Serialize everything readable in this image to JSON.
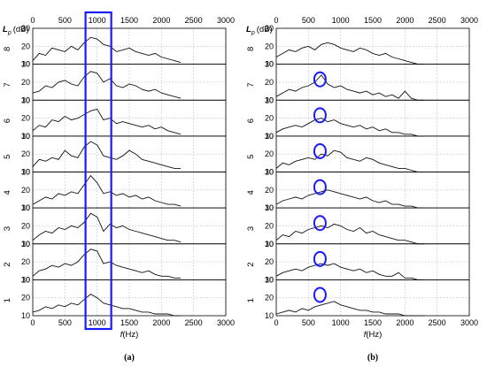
{
  "chart_data": [
    {
      "type": "line",
      "panel_label": "(a)",
      "xlabel_italic": "f",
      "xlabel_unit": "(Hz)",
      "ylabel_italic": "L",
      "ylabel_sub": "p",
      "ylabel_unit": "(dB)",
      "xlim": [
        0,
        3000
      ],
      "ylim": [
        10,
        30
      ],
      "x_ticks": [
        "0",
        "500",
        "1000",
        "1500",
        "2000",
        "2500",
        "3000"
      ],
      "y_ticks": [
        "10",
        "20",
        "30"
      ],
      "grid": true,
      "highlight": {
        "shape": "rectangle",
        "x_range": [
          820,
          1220
        ],
        "color": "#1a1aff"
      },
      "series": [
        {
          "name": "8",
          "x": [
            0,
            100,
            200,
            300,
            400,
            500,
            600,
            700,
            800,
            900,
            1000,
            1100,
            1200,
            1300,
            1400,
            1500,
            1600,
            1700,
            1800,
            1900,
            2000,
            2100,
            2200,
            2300
          ],
          "values": [
            12,
            16,
            15,
            19,
            18,
            17,
            20,
            18,
            22,
            25,
            24,
            21,
            20,
            17,
            18,
            19,
            17,
            16,
            15,
            16,
            14,
            13,
            12,
            11
          ]
        },
        {
          "name": "7",
          "x": [
            0,
            100,
            200,
            300,
            400,
            500,
            600,
            700,
            800,
            900,
            1000,
            1100,
            1200,
            1300,
            1400,
            1500,
            1600,
            1700,
            1800,
            1900,
            2000,
            2100,
            2200,
            2300
          ],
          "values": [
            14,
            15,
            18,
            17,
            20,
            21,
            19,
            18,
            23,
            26,
            25,
            20,
            22,
            18,
            17,
            19,
            18,
            16,
            15,
            16,
            14,
            13,
            12,
            11
          ]
        },
        {
          "name": "6",
          "x": [
            0,
            100,
            200,
            300,
            400,
            500,
            600,
            700,
            800,
            900,
            1000,
            1100,
            1200,
            1300,
            1400,
            1500,
            1600,
            1700,
            1800,
            1900,
            2000,
            2100,
            2200,
            2300
          ],
          "values": [
            13,
            16,
            15,
            19,
            18,
            21,
            19,
            20,
            22,
            24,
            25,
            19,
            20,
            17,
            18,
            17,
            16,
            15,
            16,
            14,
            15,
            13,
            12,
            11
          ]
        },
        {
          "name": "5",
          "x": [
            0,
            100,
            200,
            300,
            400,
            500,
            600,
            700,
            800,
            900,
            1000,
            1100,
            1200,
            1300,
            1400,
            1500,
            1600,
            1700,
            1800,
            1900,
            2000,
            2100,
            2200,
            2300
          ],
          "values": [
            13,
            17,
            16,
            18,
            17,
            22,
            19,
            18,
            24,
            27,
            25,
            19,
            18,
            17,
            19,
            22,
            20,
            17,
            16,
            15,
            14,
            13,
            12,
            12
          ]
        },
        {
          "name": "4",
          "x": [
            0,
            100,
            200,
            300,
            400,
            500,
            600,
            700,
            800,
            900,
            1000,
            1100,
            1200,
            1300,
            1400,
            1500,
            1600,
            1700,
            1800,
            1900,
            2000,
            2100,
            2200,
            2300
          ],
          "values": [
            12,
            14,
            16,
            15,
            18,
            17,
            19,
            18,
            23,
            28,
            24,
            18,
            19,
            17,
            18,
            16,
            17,
            15,
            16,
            14,
            13,
            12,
            12,
            11
          ]
        },
        {
          "name": "3",
          "x": [
            0,
            100,
            200,
            300,
            400,
            500,
            600,
            700,
            800,
            900,
            1000,
            1100,
            1200,
            1300,
            1400,
            1500,
            1600,
            1700,
            1800,
            1900,
            2000,
            2100,
            2200,
            2300
          ],
          "values": [
            12,
            15,
            17,
            16,
            19,
            18,
            20,
            19,
            22,
            27,
            25,
            17,
            21,
            19,
            20,
            18,
            17,
            16,
            15,
            14,
            13,
            12,
            12,
            11
          ]
        },
        {
          "name": "2",
          "x": [
            0,
            100,
            200,
            300,
            400,
            500,
            600,
            700,
            800,
            900,
            1000,
            1100,
            1200,
            1300,
            1400,
            1500,
            1600,
            1700,
            1800,
            1900,
            2000,
            2100,
            2200,
            2300
          ],
          "values": [
            12,
            15,
            16,
            18,
            17,
            19,
            18,
            20,
            24,
            27,
            26,
            19,
            20,
            18,
            17,
            16,
            15,
            14,
            15,
            13,
            12,
            12,
            11,
            11
          ]
        },
        {
          "name": "1",
          "x": [
            0,
            100,
            200,
            300,
            400,
            500,
            600,
            700,
            800,
            900,
            1000,
            1100,
            1200,
            1300,
            1400,
            1500,
            1600,
            1700,
            1800,
            1900,
            2000,
            2100,
            2200,
            2300
          ],
          "values": [
            12,
            13,
            15,
            14,
            16,
            15,
            17,
            16,
            19,
            22,
            20,
            17,
            16,
            15,
            14,
            14,
            13,
            12,
            12,
            11,
            11,
            11,
            10,
            10
          ]
        }
      ]
    },
    {
      "type": "line",
      "panel_label": "(b)",
      "xlabel_italic": "f",
      "xlabel_unit": "(Hz)",
      "ylabel_italic": "L",
      "ylabel_sub": "p",
      "ylabel_unit": "(dB)",
      "xlim": [
        0,
        3000
      ],
      "ylim": [
        10,
        30
      ],
      "x_ticks": [
        "0",
        "500",
        "1000",
        "1500",
        "2000",
        "2500",
        "3000"
      ],
      "y_ticks": [
        "10",
        "20",
        "30"
      ],
      "grid": true,
      "highlight": {
        "shape": "circle",
        "x": 680,
        "color": "#1a1aff",
        "panels": [
          "7",
          "6",
          "5",
          "4",
          "3",
          "2",
          "1"
        ]
      },
      "series": [
        {
          "name": "8",
          "x": [
            0,
            100,
            200,
            300,
            400,
            500,
            600,
            700,
            800,
            900,
            1000,
            1100,
            1200,
            1300,
            1400,
            1500,
            1600,
            1700,
            1800,
            1900,
            2000,
            2100,
            2200,
            2300
          ],
          "values": [
            14,
            16,
            18,
            17,
            19,
            20,
            18,
            21,
            22,
            21,
            19,
            18,
            17,
            19,
            18,
            16,
            15,
            16,
            14,
            13,
            12,
            11,
            10,
            10
          ]
        },
        {
          "name": "7",
          "x": [
            0,
            100,
            200,
            300,
            400,
            500,
            600,
            700,
            800,
            900,
            1000,
            1100,
            1200,
            1300,
            1400,
            1500,
            1600,
            1700,
            1800,
            1900,
            2000,
            2100,
            2200,
            2300
          ],
          "values": [
            12,
            14,
            16,
            15,
            17,
            18,
            20,
            24,
            19,
            17,
            18,
            16,
            15,
            14,
            15,
            13,
            14,
            12,
            13,
            11,
            15,
            11,
            10,
            10
          ]
        },
        {
          "name": "6",
          "x": [
            0,
            100,
            200,
            300,
            400,
            500,
            600,
            700,
            800,
            900,
            1000,
            1100,
            1200,
            1300,
            1400,
            1500,
            1600,
            1700,
            1800,
            1900,
            2000,
            2100,
            2200,
            2300
          ],
          "values": [
            12,
            14,
            15,
            16,
            15,
            17,
            19,
            20,
            18,
            19,
            17,
            16,
            15,
            16,
            14,
            15,
            13,
            14,
            12,
            12,
            11,
            11,
            10,
            10
          ]
        },
        {
          "name": "5",
          "x": [
            0,
            100,
            200,
            300,
            400,
            500,
            600,
            700,
            800,
            900,
            1000,
            1100,
            1200,
            1300,
            1400,
            1500,
            1600,
            1700,
            1800,
            1900,
            2000,
            2100,
            2200,
            2300
          ],
          "values": [
            12,
            15,
            14,
            16,
            17,
            18,
            17,
            20,
            19,
            22,
            21,
            18,
            17,
            16,
            18,
            17,
            15,
            14,
            13,
            12,
            12,
            11,
            10,
            10
          ]
        },
        {
          "name": "4",
          "x": [
            0,
            100,
            200,
            300,
            400,
            500,
            600,
            700,
            800,
            900,
            1000,
            1100,
            1200,
            1300,
            1400,
            1500,
            1600,
            1700,
            1800,
            1900,
            2000,
            2100,
            2200,
            2300
          ],
          "values": [
            12,
            14,
            15,
            16,
            15,
            17,
            18,
            19,
            20,
            19,
            18,
            17,
            16,
            15,
            16,
            14,
            13,
            14,
            12,
            12,
            11,
            11,
            10,
            10
          ]
        },
        {
          "name": "3",
          "x": [
            0,
            100,
            200,
            300,
            400,
            500,
            600,
            700,
            800,
            900,
            1000,
            1100,
            1200,
            1300,
            1400,
            1500,
            1600,
            1700,
            1800,
            1900,
            2000,
            2100,
            2200,
            2300
          ],
          "values": [
            12,
            15,
            14,
            17,
            16,
            18,
            19,
            20,
            19,
            21,
            20,
            18,
            17,
            19,
            16,
            17,
            15,
            14,
            13,
            12,
            12,
            11,
            10,
            10
          ]
        },
        {
          "name": "2",
          "x": [
            0,
            100,
            200,
            300,
            400,
            500,
            600,
            700,
            800,
            900,
            1000,
            1100,
            1200,
            1300,
            1400,
            1500,
            1600,
            1700,
            1800,
            1900,
            2000,
            2100,
            2200,
            2300
          ],
          "values": [
            12,
            14,
            15,
            16,
            15,
            17,
            18,
            19,
            18,
            19,
            17,
            16,
            15,
            16,
            14,
            15,
            13,
            12,
            12,
            14,
            11,
            11,
            10,
            10
          ]
        },
        {
          "name": "1",
          "x": [
            0,
            100,
            200,
            300,
            400,
            500,
            600,
            700,
            800,
            900,
            1000,
            1100,
            1200,
            1300,
            1400,
            1500,
            1600,
            1700,
            1800,
            1900,
            2000,
            2100,
            2200,
            2300
          ],
          "values": [
            11,
            12,
            13,
            12,
            14,
            13,
            15,
            16,
            17,
            18,
            16,
            15,
            14,
            13,
            13,
            12,
            12,
            11,
            11,
            11,
            10,
            10,
            10,
            10
          ]
        }
      ]
    }
  ]
}
